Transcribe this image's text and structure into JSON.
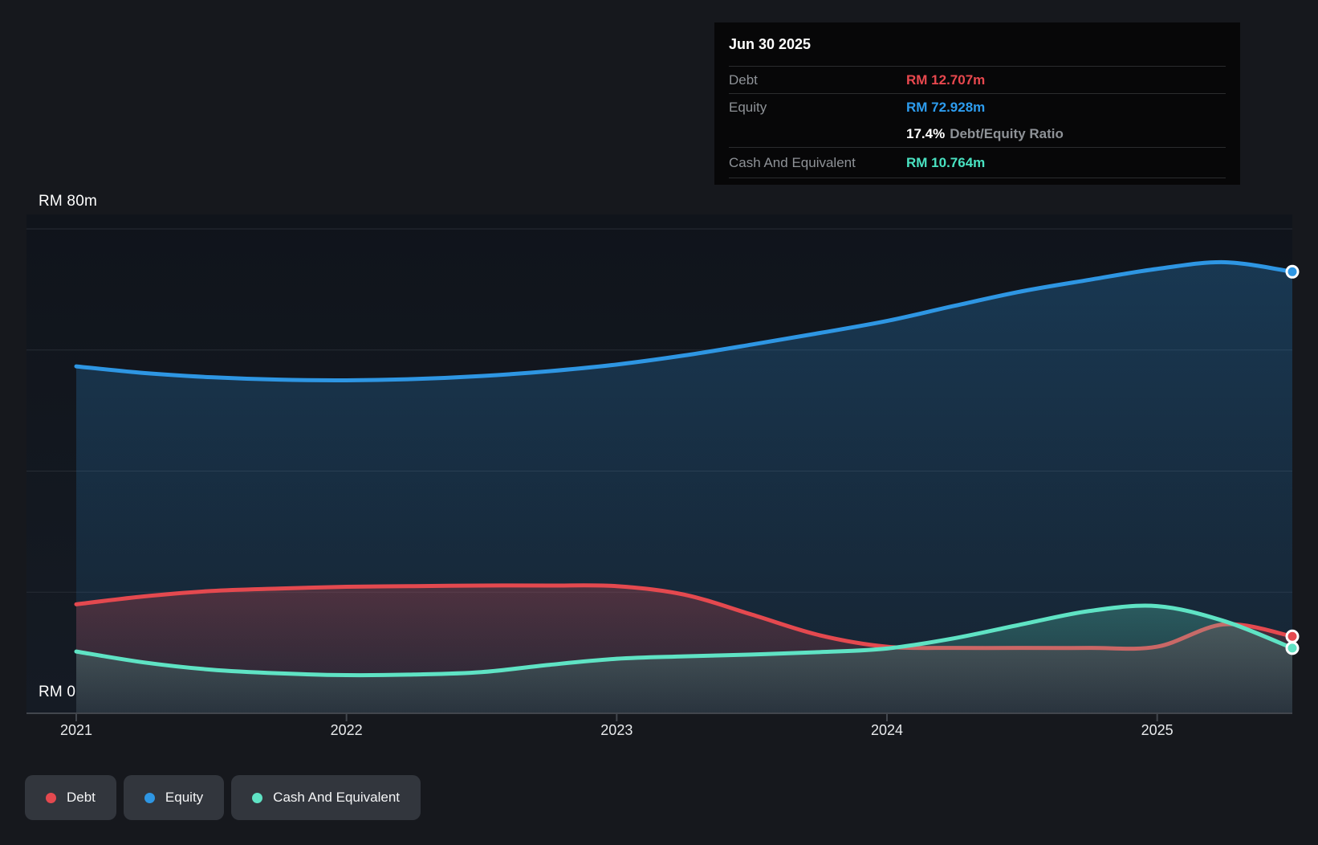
{
  "tooltip": {
    "date": "Jun 30 2025",
    "debt_label": "Debt",
    "debt_value": "RM 12.707m",
    "equity_label": "Equity",
    "equity_value": "RM 72.928m",
    "ratio_value": "17.4%",
    "ratio_label": "Debt/Equity Ratio",
    "cash_label": "Cash And Equivalent",
    "cash_value": "RM 10.764m"
  },
  "legend": {
    "items": [
      {
        "label": "Debt",
        "color": "#e4494f"
      },
      {
        "label": "Equity",
        "color": "#2e96e3"
      },
      {
        "label": "Cash And Equivalent",
        "color": "#5fe3c4"
      }
    ]
  },
  "colors": {
    "debt_value_text": "#e8484e",
    "equity_value_text": "#2d9cee",
    "cash_value_text": "#49e2c1",
    "gridline": "#272c34",
    "axis": "#42464d"
  },
  "chart_data": {
    "type": "area",
    "title": "",
    "x_unit": "year",
    "x_range": [
      2021,
      2025.5
    ],
    "ylim": [
      0,
      80
    ],
    "y_label_top": "RM 80m",
    "y_label_bottom": "RM 0",
    "grid_values": [
      80,
      60,
      40,
      20
    ],
    "x_ticks": [
      2021,
      2022,
      2023,
      2024,
      2025
    ],
    "x_tick_labels": [
      "2021",
      "2022",
      "2023",
      "2024",
      "2025"
    ],
    "legend_position": "bottom-left",
    "grid": "horizontal",
    "x": [
      2021,
      2021.25,
      2021.5,
      2021.75,
      2022,
      2022.25,
      2022.5,
      2022.75,
      2023,
      2023.25,
      2023.5,
      2023.75,
      2024,
      2024.25,
      2024.5,
      2024.75,
      2025,
      2025.25,
      2025.5
    ],
    "series": [
      {
        "name": "Equity",
        "color": "#2e96e3",
        "values": [
          57.3,
          56.2,
          55.5,
          55.1,
          55.0,
          55.2,
          55.7,
          56.5,
          57.6,
          59.1,
          60.9,
          62.8,
          64.8,
          67.3,
          69.7,
          71.6,
          73.4,
          74.5,
          72.928
        ]
      },
      {
        "name": "Debt",
        "color": "#e4494f",
        "values": [
          18.0,
          19.3,
          20.2,
          20.6,
          20.9,
          21.0,
          21.1,
          21.1,
          21.0,
          19.6,
          16.3,
          12.9,
          11.0,
          10.8,
          10.8,
          10.8,
          11.0,
          14.7,
          12.707
        ]
      },
      {
        "name": "Cash And Equivalent",
        "color": "#5fe3c4",
        "values": [
          10.2,
          8.4,
          7.2,
          6.6,
          6.3,
          6.4,
          6.8,
          8.0,
          9.0,
          9.4,
          9.7,
          10.1,
          10.7,
          12.4,
          14.7,
          16.9,
          17.7,
          15.2,
          10.764
        ]
      }
    ],
    "end_markers": [
      {
        "series": "Equity",
        "x": 2025.5,
        "value": 72.928
      },
      {
        "series": "Debt",
        "x": 2025.5,
        "value": 12.707
      },
      {
        "series": "Cash And Equivalent",
        "x": 2025.5,
        "value": 10.764
      }
    ]
  }
}
